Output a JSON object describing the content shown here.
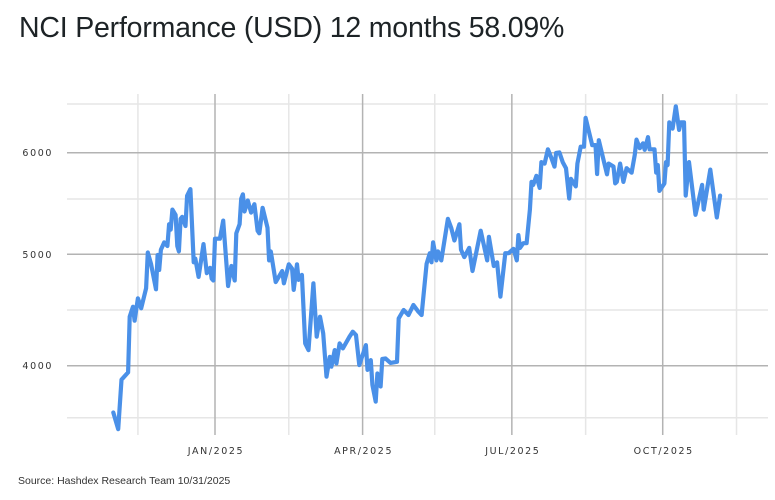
{
  "title": "NCI Performance (USD) 12 months 58.09%",
  "source": "Source: Hashdex Research Team 10/31/2025",
  "chart_data": {
    "type": "line",
    "title": "NCI Performance (USD) 12 months 58.09%",
    "xlabel": "",
    "ylabel": "",
    "line_color": "#4a90e8",
    "grid": true,
    "legend": "none",
    "x_ticks": [
      {
        "date": "2025-01-01",
        "label": "JAN/2025"
      },
      {
        "date": "2025-04-01",
        "label": "APR/2025"
      },
      {
        "date": "2025-07-01",
        "label": "JUL/2025"
      },
      {
        "date": "2025-10-01",
        "label": "OCT/2025"
      }
    ],
    "x_minor_gridlines": [
      "2024-11-15",
      "2025-02-15",
      "2025-05-15",
      "2025-08-15",
      "2025-11-15"
    ],
    "y_ticks": [
      {
        "value": 4000,
        "label": "4000"
      },
      {
        "value": 5000,
        "label": "5000"
      },
      {
        "value": 6000,
        "label": "6000"
      }
    ],
    "y_minor_gridlines": [
      3500,
      4500,
      5500,
      6500
    ],
    "ylim": [
      3500,
      6500
    ],
    "series": [
      {
        "points": [
          [
            "2024-10-31",
            3550
          ],
          [
            "2024-11-03",
            3390
          ],
          [
            "2024-11-05",
            3865
          ],
          [
            "2024-11-09",
            3936
          ],
          [
            "2024-11-10",
            4440
          ],
          [
            "2024-11-12",
            4530
          ],
          [
            "2024-11-13",
            4404
          ],
          [
            "2024-11-15",
            4605
          ],
          [
            "2024-11-17",
            4515
          ],
          [
            "2024-11-20",
            4695
          ],
          [
            "2024-11-21",
            5016
          ],
          [
            "2024-11-23",
            4915
          ],
          [
            "2024-11-26",
            4686
          ],
          [
            "2024-11-27",
            4994
          ],
          [
            "2024-11-28",
            4860
          ],
          [
            "2024-11-29",
            5042
          ],
          [
            "2024-12-01",
            5108
          ],
          [
            "2024-12-03",
            5075
          ],
          [
            "2024-12-04",
            5272
          ],
          [
            "2024-12-05",
            5223
          ],
          [
            "2024-12-06",
            5404
          ],
          [
            "2024-12-08",
            5355
          ],
          [
            "2024-12-09",
            5075
          ],
          [
            "2024-12-10",
            5026
          ],
          [
            "2024-12-11",
            5321
          ],
          [
            "2024-12-12",
            5338
          ],
          [
            "2024-12-14",
            5256
          ],
          [
            "2024-12-15",
            5535
          ],
          [
            "2024-12-17",
            5607
          ],
          [
            "2024-12-19",
            4928
          ],
          [
            "2024-12-20",
            4961
          ],
          [
            "2024-12-22",
            4797
          ],
          [
            "2024-12-25",
            5092
          ],
          [
            "2024-12-27",
            4830
          ],
          [
            "2024-12-29",
            4879
          ],
          [
            "2024-12-30",
            4781
          ],
          [
            "2024-12-31",
            4765
          ],
          [
            "2025-01-01",
            5141
          ],
          [
            "2025-01-04",
            5141
          ],
          [
            "2025-01-06",
            5305
          ],
          [
            "2025-01-09",
            4715
          ],
          [
            "2025-01-11",
            4895
          ],
          [
            "2025-01-13",
            4765
          ],
          [
            "2025-01-14",
            5190
          ],
          [
            "2025-01-16",
            5272
          ],
          [
            "2025-01-17",
            5502
          ],
          [
            "2025-01-18",
            5551
          ],
          [
            "2025-01-19",
            5387
          ],
          [
            "2025-01-21",
            5486
          ],
          [
            "2025-01-23",
            5377
          ],
          [
            "2025-01-25",
            5453
          ],
          [
            "2025-01-27",
            5213
          ],
          [
            "2025-01-28",
            5190
          ],
          [
            "2025-01-30",
            5420
          ],
          [
            "2025-02-02",
            5240
          ],
          [
            "2025-02-03",
            4945
          ],
          [
            "2025-02-04",
            5026
          ],
          [
            "2025-02-07",
            4750
          ],
          [
            "2025-02-11",
            4850
          ],
          [
            "2025-02-12",
            4740
          ],
          [
            "2025-02-15",
            4910
          ],
          [
            "2025-02-17",
            4870
          ],
          [
            "2025-02-18",
            4680
          ],
          [
            "2025-02-20",
            4910
          ],
          [
            "2025-02-21",
            4770
          ],
          [
            "2025-02-23",
            4815
          ],
          [
            "2025-02-25",
            4200
          ],
          [
            "2025-02-27",
            4140
          ],
          [
            "2025-03-02",
            4740
          ],
          [
            "2025-03-04",
            4260
          ],
          [
            "2025-03-06",
            4440
          ],
          [
            "2025-03-08",
            4290
          ],
          [
            "2025-03-10",
            3895
          ],
          [
            "2025-03-12",
            4080
          ],
          [
            "2025-03-13",
            3990
          ],
          [
            "2025-03-15",
            4140
          ],
          [
            "2025-03-16",
            4020
          ],
          [
            "2025-03-18",
            4200
          ],
          [
            "2025-03-20",
            4155
          ],
          [
            "2025-03-24",
            4260
          ],
          [
            "2025-03-26",
            4305
          ],
          [
            "2025-03-28",
            4275
          ],
          [
            "2025-03-30",
            4005
          ],
          [
            "2025-04-03",
            4185
          ],
          [
            "2025-04-04",
            3960
          ],
          [
            "2025-04-06",
            4050
          ],
          [
            "2025-04-07",
            3815
          ],
          [
            "2025-04-09",
            3655
          ],
          [
            "2025-04-10",
            3925
          ],
          [
            "2025-04-12",
            3800
          ],
          [
            "2025-04-13",
            4060
          ],
          [
            "2025-04-15",
            4065
          ],
          [
            "2025-04-18",
            4025
          ],
          [
            "2025-04-22",
            4035
          ],
          [
            "2025-04-23",
            4425
          ],
          [
            "2025-04-26",
            4500
          ],
          [
            "2025-04-29",
            4455
          ],
          [
            "2025-05-02",
            4545
          ],
          [
            "2025-05-05",
            4485
          ],
          [
            "2025-05-07",
            4455
          ],
          [
            "2025-05-10",
            4915
          ],
          [
            "2025-05-12",
            5010
          ],
          [
            "2025-05-13",
            4928
          ],
          [
            "2025-05-14",
            5108
          ],
          [
            "2025-05-16",
            4945
          ],
          [
            "2025-05-17",
            5026
          ],
          [
            "2025-05-19",
            4945
          ],
          [
            "2025-05-23",
            5321
          ],
          [
            "2025-05-25",
            5240
          ],
          [
            "2025-05-27",
            5125
          ],
          [
            "2025-05-30",
            5272
          ],
          [
            "2025-05-31",
            5042
          ],
          [
            "2025-06-02",
            4975
          ],
          [
            "2025-06-05",
            5058
          ],
          [
            "2025-06-07",
            4850
          ],
          [
            "2025-06-12",
            5213
          ],
          [
            "2025-06-16",
            4945
          ],
          [
            "2025-06-17",
            5157
          ],
          [
            "2025-06-20",
            4895
          ],
          [
            "2025-06-22",
            4928
          ],
          [
            "2025-06-24",
            4620
          ],
          [
            "2025-06-27",
            5010
          ],
          [
            "2025-06-29",
            5010
          ],
          [
            "2025-07-02",
            5050
          ],
          [
            "2025-07-04",
            4945
          ],
          [
            "2025-07-05",
            5174
          ],
          [
            "2025-07-06",
            5058
          ],
          [
            "2025-07-08",
            5100
          ],
          [
            "2025-07-10",
            5100
          ],
          [
            "2025-07-12",
            5404
          ],
          [
            "2025-07-13",
            5685
          ],
          [
            "2025-07-14",
            5652
          ],
          [
            "2025-07-16",
            5750
          ],
          [
            "2025-07-18",
            5620
          ],
          [
            "2025-07-19",
            5899
          ],
          [
            "2025-07-21",
            5882
          ],
          [
            "2025-07-23",
            6035
          ],
          [
            "2025-07-25",
            5948
          ],
          [
            "2025-07-27",
            5850
          ],
          [
            "2025-07-28",
            5997
          ],
          [
            "2025-07-30",
            6003
          ],
          [
            "2025-08-01",
            5899
          ],
          [
            "2025-08-03",
            5833
          ],
          [
            "2025-08-05",
            5505
          ],
          [
            "2025-08-06",
            5718
          ],
          [
            "2025-08-09",
            5636
          ],
          [
            "2025-08-10",
            5882
          ],
          [
            "2025-08-12",
            6062
          ],
          [
            "2025-08-14",
            6062
          ],
          [
            "2025-08-15",
            6357
          ],
          [
            "2025-08-19",
            6078
          ],
          [
            "2025-08-21",
            6078
          ],
          [
            "2025-08-22",
            5770
          ],
          [
            "2025-08-23",
            6128
          ],
          [
            "2025-08-26",
            5915
          ],
          [
            "2025-08-28",
            5767
          ],
          [
            "2025-08-29",
            5882
          ],
          [
            "2025-09-01",
            5850
          ],
          [
            "2025-09-02",
            5669
          ],
          [
            "2025-09-03",
            5685
          ],
          [
            "2025-09-05",
            5882
          ],
          [
            "2025-09-07",
            5685
          ],
          [
            "2025-09-09",
            5833
          ],
          [
            "2025-09-12",
            5784
          ],
          [
            "2025-09-14",
            5980
          ],
          [
            "2025-09-15",
            6134
          ],
          [
            "2025-09-17",
            6046
          ],
          [
            "2025-09-19",
            6096
          ],
          [
            "2025-09-20",
            6030
          ],
          [
            "2025-09-22",
            6160
          ],
          [
            "2025-09-23",
            6035
          ],
          [
            "2025-09-26",
            6035
          ],
          [
            "2025-09-27",
            5784
          ],
          [
            "2025-09-28",
            5866
          ],
          [
            "2025-09-29",
            5587
          ],
          [
            "2025-10-02",
            5669
          ],
          [
            "2025-10-03",
            5899
          ],
          [
            "2025-10-04",
            5866
          ],
          [
            "2025-10-05",
            6312
          ],
          [
            "2025-10-07",
            6247
          ],
          [
            "2025-10-09",
            6476
          ],
          [
            "2025-10-11",
            6234
          ],
          [
            "2025-10-12",
            6312
          ],
          [
            "2025-10-14",
            6312
          ],
          [
            "2025-10-15",
            5537
          ],
          [
            "2025-10-17",
            5899
          ],
          [
            "2025-10-21",
            5357
          ],
          [
            "2025-10-25",
            5652
          ],
          [
            "2025-10-26",
            5404
          ],
          [
            "2025-10-30",
            5817
          ],
          [
            "2025-11-03",
            5334
          ],
          [
            "2025-11-05",
            5537
          ]
        ]
      }
    ]
  }
}
